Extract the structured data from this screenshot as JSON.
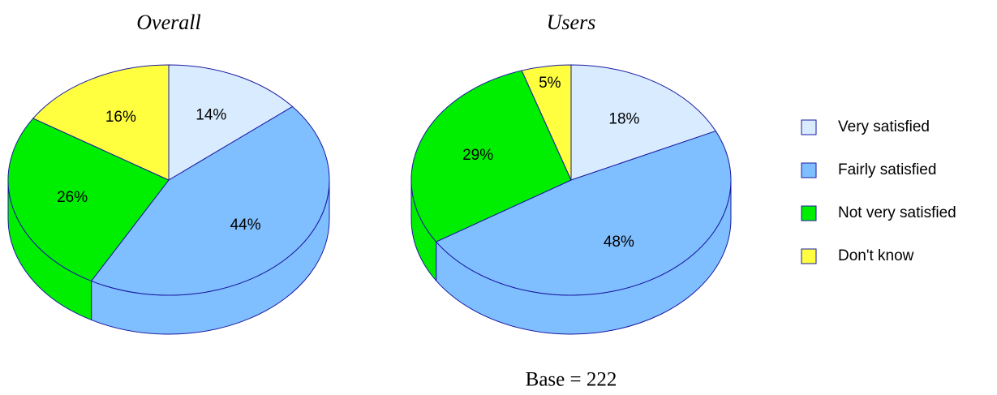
{
  "chart_data": [
    {
      "type": "pie",
      "title": "Overall",
      "categories": [
        "Very satisfied",
        "Fairly satisfied",
        "Not very satisfied",
        "Don't know"
      ],
      "values": [
        14,
        44,
        26,
        16
      ],
      "value_labels": [
        "14%",
        "44%",
        "26%",
        "16%"
      ],
      "colors": [
        "#d9ecff",
        "#80bfff",
        "#00ee00",
        "#ffff40"
      ]
    },
    {
      "type": "pie",
      "title": "Users",
      "values": [
        18,
        48,
        29,
        5
      ],
      "value_labels": [
        "18%",
        "48%",
        "29%",
        "5%"
      ],
      "colors": [
        "#d9ecff",
        "#80bfff",
        "#00ee00",
        "#ffff40"
      ],
      "annotation": "Base = 222"
    }
  ]
}
